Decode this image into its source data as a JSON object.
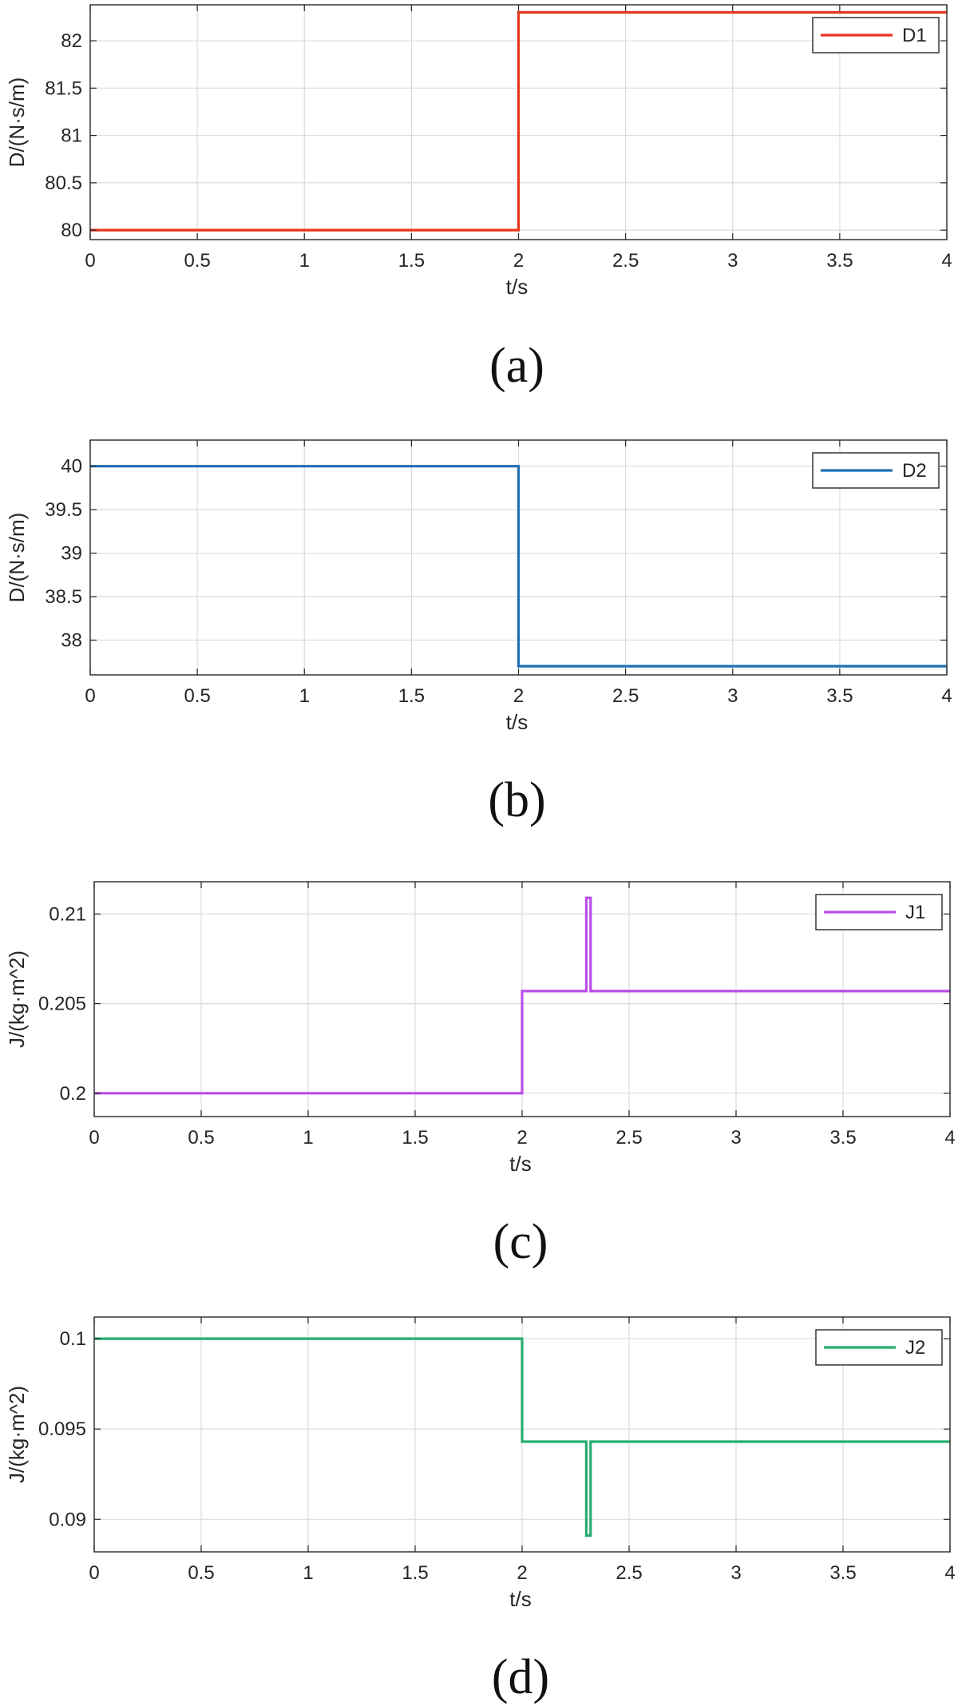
{
  "chart_data": [
    {
      "type": "line",
      "caption": "(a)",
      "xlabel": "t/s",
      "ylabel": "D/(N·s/m)",
      "xlim": [
        0,
        4
      ],
      "ylim": [
        79.9,
        82.38
      ],
      "xticks": [
        0,
        0.5,
        1,
        1.5,
        2,
        2.5,
        3,
        3.5,
        4
      ],
      "xticklabels": [
        "0",
        "0.5",
        "1",
        "1.5",
        "2",
        "2.5",
        "3",
        "3.5",
        "4"
      ],
      "yticks": [
        80,
        80.5,
        81,
        81.5,
        82
      ],
      "yticklabels": [
        "80",
        "80.5",
        "81",
        "81.5",
        "82"
      ],
      "grid": true,
      "legend_position": "top-right",
      "series": [
        {
          "name": "D1",
          "color": "#e8361c",
          "x": [
            0,
            2,
            2,
            4
          ],
          "y": [
            80,
            80,
            82.3,
            82.3
          ]
        }
      ]
    },
    {
      "type": "line",
      "caption": "(b)",
      "xlabel": "t/s",
      "ylabel": "D/(N·s/m)",
      "xlim": [
        0,
        4
      ],
      "ylim": [
        37.6,
        40.3
      ],
      "xticks": [
        0,
        0.5,
        1,
        1.5,
        2,
        2.5,
        3,
        3.5,
        4
      ],
      "xticklabels": [
        "0",
        "0.5",
        "1",
        "1.5",
        "2",
        "2.5",
        "3",
        "3.5",
        "4"
      ],
      "yticks": [
        38,
        38.5,
        39,
        39.5,
        40
      ],
      "yticklabels": [
        "38",
        "38.5",
        "39",
        "39.5",
        "40"
      ],
      "grid": true,
      "legend_position": "top-right",
      "series": [
        {
          "name": "D2",
          "color": "#1f6fb4",
          "x": [
            0,
            2,
            2,
            4
          ],
          "y": [
            40,
            40,
            37.7,
            37.7
          ]
        }
      ]
    },
    {
      "type": "line",
      "caption": "(c)",
      "xlabel": "t/s",
      "ylabel": "J/(kg·m^2)",
      "xlim": [
        0,
        4
      ],
      "ylim": [
        0.1987,
        0.2118
      ],
      "xticks": [
        0,
        0.5,
        1,
        1.5,
        2,
        2.5,
        3,
        3.5,
        4
      ],
      "xticklabels": [
        "0",
        "0.5",
        "1",
        "1.5",
        "2",
        "2.5",
        "3",
        "3.5",
        "4"
      ],
      "yticks": [
        0.2,
        0.205,
        0.21
      ],
      "yticklabels": [
        "0.2",
        "0.205",
        "0.21"
      ],
      "grid": true,
      "legend_position": "top-right",
      "series": [
        {
          "name": "J1",
          "color": "#b94ee8",
          "x": [
            0,
            2,
            2,
            2.3,
            2.3,
            2.32,
            2.32,
            4
          ],
          "y": [
            0.2,
            0.2,
            0.2057,
            0.2057,
            0.2109,
            0.2109,
            0.2057,
            0.2057
          ]
        }
      ]
    },
    {
      "type": "line",
      "caption": "(d)",
      "xlabel": "t/s",
      "ylabel": "J/(kg·m^2)",
      "xlim": [
        0,
        4
      ],
      "ylim": [
        0.0882,
        0.1012
      ],
      "xticks": [
        0,
        0.5,
        1,
        1.5,
        2,
        2.5,
        3,
        3.5,
        4
      ],
      "xticklabels": [
        "0",
        "0.5",
        "1",
        "1.5",
        "2",
        "2.5",
        "3",
        "3.5",
        "4"
      ],
      "yticks": [
        0.09,
        0.095,
        0.1
      ],
      "yticklabels": [
        "0.09",
        "0.095",
        "0.1"
      ],
      "grid": true,
      "legend_position": "top-right",
      "series": [
        {
          "name": "J2",
          "color": "#27ad72",
          "x": [
            0,
            2,
            2,
            2.3,
            2.3,
            2.32,
            2.32,
            4
          ],
          "y": [
            0.1,
            0.1,
            0.0943,
            0.0943,
            0.0891,
            0.0891,
            0.0943,
            0.0943
          ]
        }
      ]
    }
  ]
}
